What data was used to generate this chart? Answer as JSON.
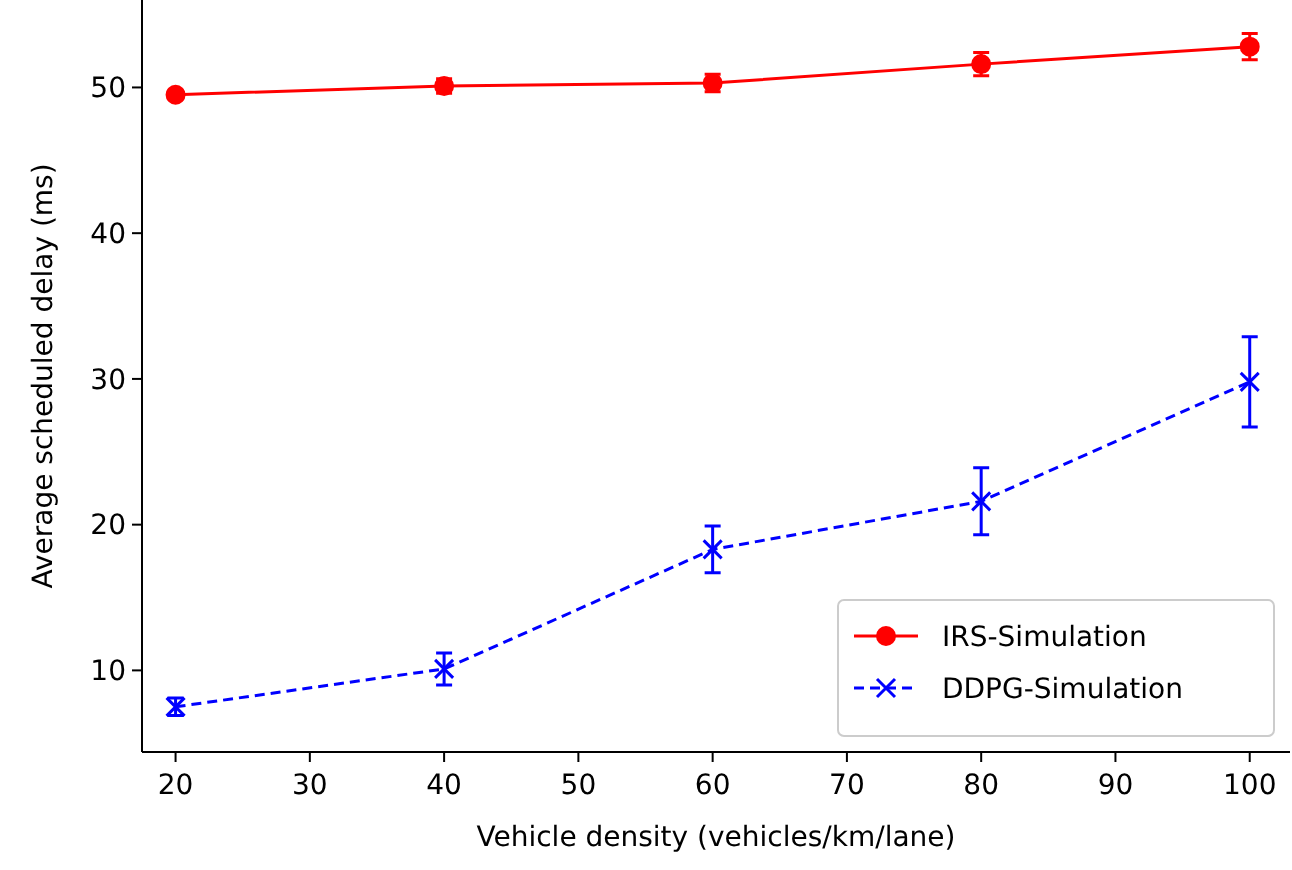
{
  "chart_data": {
    "type": "line",
    "xlabel": "Vehicle density (vehicles/km/lane)",
    "ylabel": "Average scheduled delay (ms)",
    "x": [
      20,
      40,
      60,
      80,
      100
    ],
    "series": [
      {
        "name": "IRS-Simulation",
        "color": "#ff0000",
        "marker": "circle",
        "line_style": "solid",
        "values": [
          49.5,
          50.1,
          50.3,
          51.6,
          52.8
        ],
        "errors": [
          0.3,
          0.5,
          0.6,
          0.8,
          0.9
        ]
      },
      {
        "name": "DDPG-Simulation",
        "color": "#0000ff",
        "marker": "cross",
        "line_style": "dashed",
        "values": [
          7.5,
          10.1,
          18.3,
          21.6,
          29.8
        ],
        "errors": [
          0.6,
          1.1,
          1.6,
          2.3,
          3.1
        ]
      }
    ],
    "xlim": [
      17.5,
      103
    ],
    "ylim": [
      4.4,
      56
    ],
    "xticks": [
      20,
      30,
      40,
      50,
      60,
      70,
      80,
      90,
      100
    ],
    "yticks": [
      10,
      20,
      30,
      40,
      50
    ],
    "legend": "bottom right",
    "grid": false
  }
}
